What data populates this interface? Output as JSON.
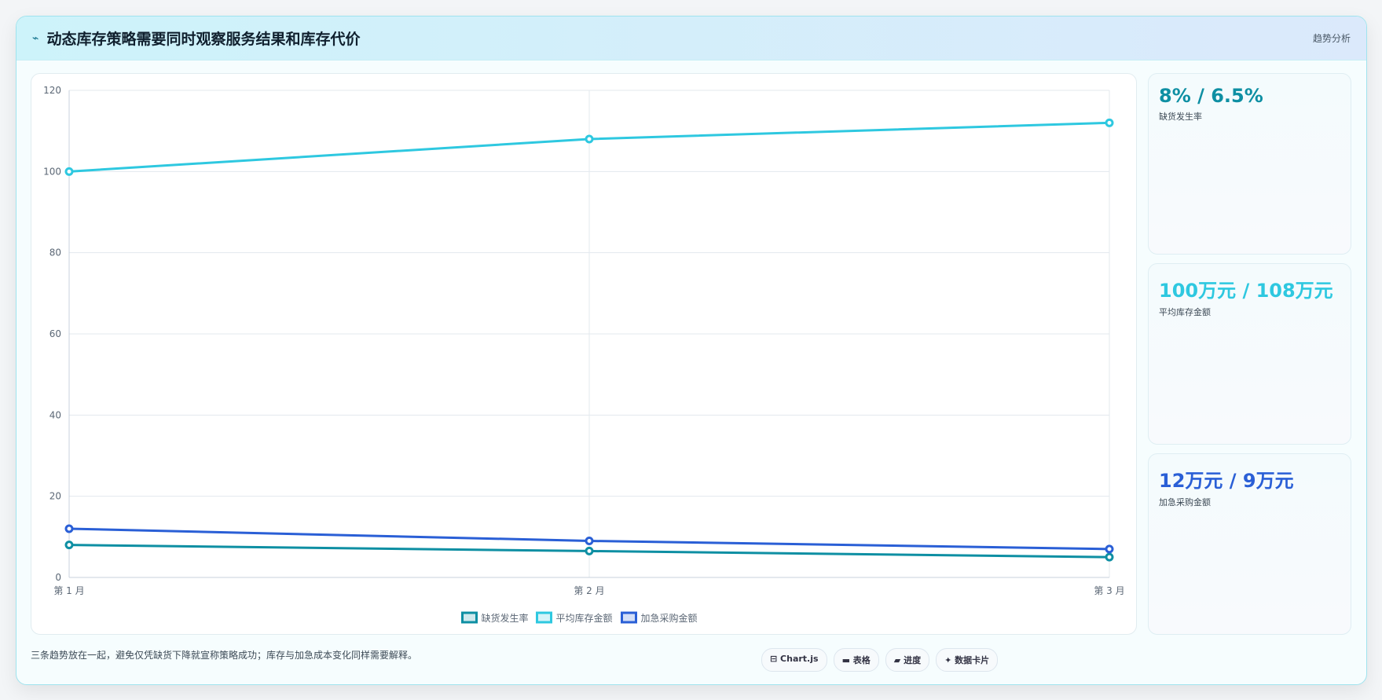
{
  "header": {
    "icon": "⌁",
    "title": "动态库存策略需要同时观察服务结果和库存代价",
    "tag": "趋势分析"
  },
  "chart_data": {
    "type": "line",
    "categories": [
      "第 1 月",
      "第 2 月",
      "第 3 月"
    ],
    "series": [
      {
        "name": "缺货发生率",
        "color": "#0e8fa3",
        "values": [
          8,
          6.5,
          5
        ]
      },
      {
        "name": "平均库存金额",
        "color": "#2ec8e0",
        "values": [
          100,
          108,
          112
        ]
      },
      {
        "name": "加急采购金额",
        "color": "#2a5fd6",
        "values": [
          12,
          9,
          7
        ]
      }
    ],
    "ylim": [
      0,
      120
    ],
    "yticks": [
      0,
      20,
      40,
      60,
      80,
      100,
      120
    ],
    "grid": true,
    "legend": "bottom"
  },
  "cards": [
    {
      "value": "8% / 6.5%",
      "label": "缺货发生率",
      "color": "#0e8fa3"
    },
    {
      "value": "100万元 / 108万元",
      "label": "平均库存金额",
      "color": "#2ec8e0"
    },
    {
      "value": "12万元 / 9万元",
      "label": "加急采购金额",
      "color": "#2a5fd6"
    }
  ],
  "footer": {
    "note": "三条趋势放在一起，避免仅凭缺货下降就宣称策略成功；库存与加急成本变化同样需要解释。",
    "buttons": [
      "⊟ Chart.js",
      "▬ 表格",
      "▰ 进度",
      "✦ 数据卡片"
    ]
  }
}
